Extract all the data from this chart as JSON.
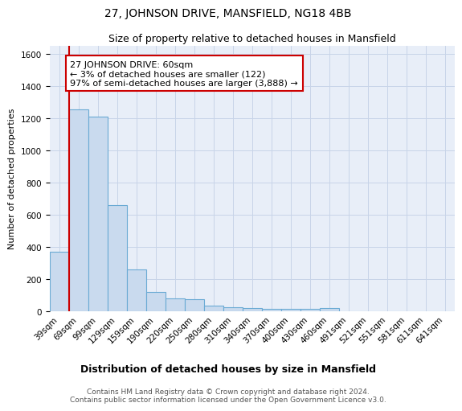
{
  "title": "27, JOHNSON DRIVE, MANSFIELD, NG18 4BB",
  "subtitle": "Size of property relative to detached houses in Mansfield",
  "xlabel": "Distribution of detached houses by size in Mansfield",
  "ylabel": "Number of detached properties",
  "categories": [
    "39sqm",
    "69sqm",
    "99sqm",
    "129sqm",
    "159sqm",
    "190sqm",
    "220sqm",
    "250sqm",
    "280sqm",
    "310sqm",
    "340sqm",
    "370sqm",
    "400sqm",
    "430sqm",
    "460sqm",
    "491sqm",
    "521sqm",
    "551sqm",
    "581sqm",
    "611sqm",
    "641sqm"
  ],
  "values": [
    370,
    1255,
    1210,
    660,
    260,
    120,
    78,
    75,
    35,
    25,
    18,
    15,
    15,
    15,
    18,
    0,
    0,
    0,
    0,
    0,
    0
  ],
  "bar_color": "#c9daee",
  "bar_edge_color": "#6aaad4",
  "vline_color": "#cc0000",
  "vline_x_index": 0.5,
  "annotation_text": "27 JOHNSON DRIVE: 60sqm\n← 3% of detached houses are smaller (122)\n97% of semi-detached houses are larger (3,888) →",
  "annotation_box_facecolor": "#ffffff",
  "annotation_box_edgecolor": "#cc0000",
  "ylim": [
    0,
    1650
  ],
  "yticks": [
    0,
    200,
    400,
    600,
    800,
    1000,
    1200,
    1400,
    1600
  ],
  "grid_color": "#c8d4e8",
  "background_color": "#e8eef8",
  "footer": "Contains HM Land Registry data © Crown copyright and database right 2024.\nContains public sector information licensed under the Open Government Licence v3.0.",
  "title_fontsize": 10,
  "subtitle_fontsize": 9,
  "xlabel_fontsize": 9,
  "ylabel_fontsize": 8,
  "tick_fontsize": 7.5,
  "annotation_fontsize": 8,
  "footer_fontsize": 6.5
}
